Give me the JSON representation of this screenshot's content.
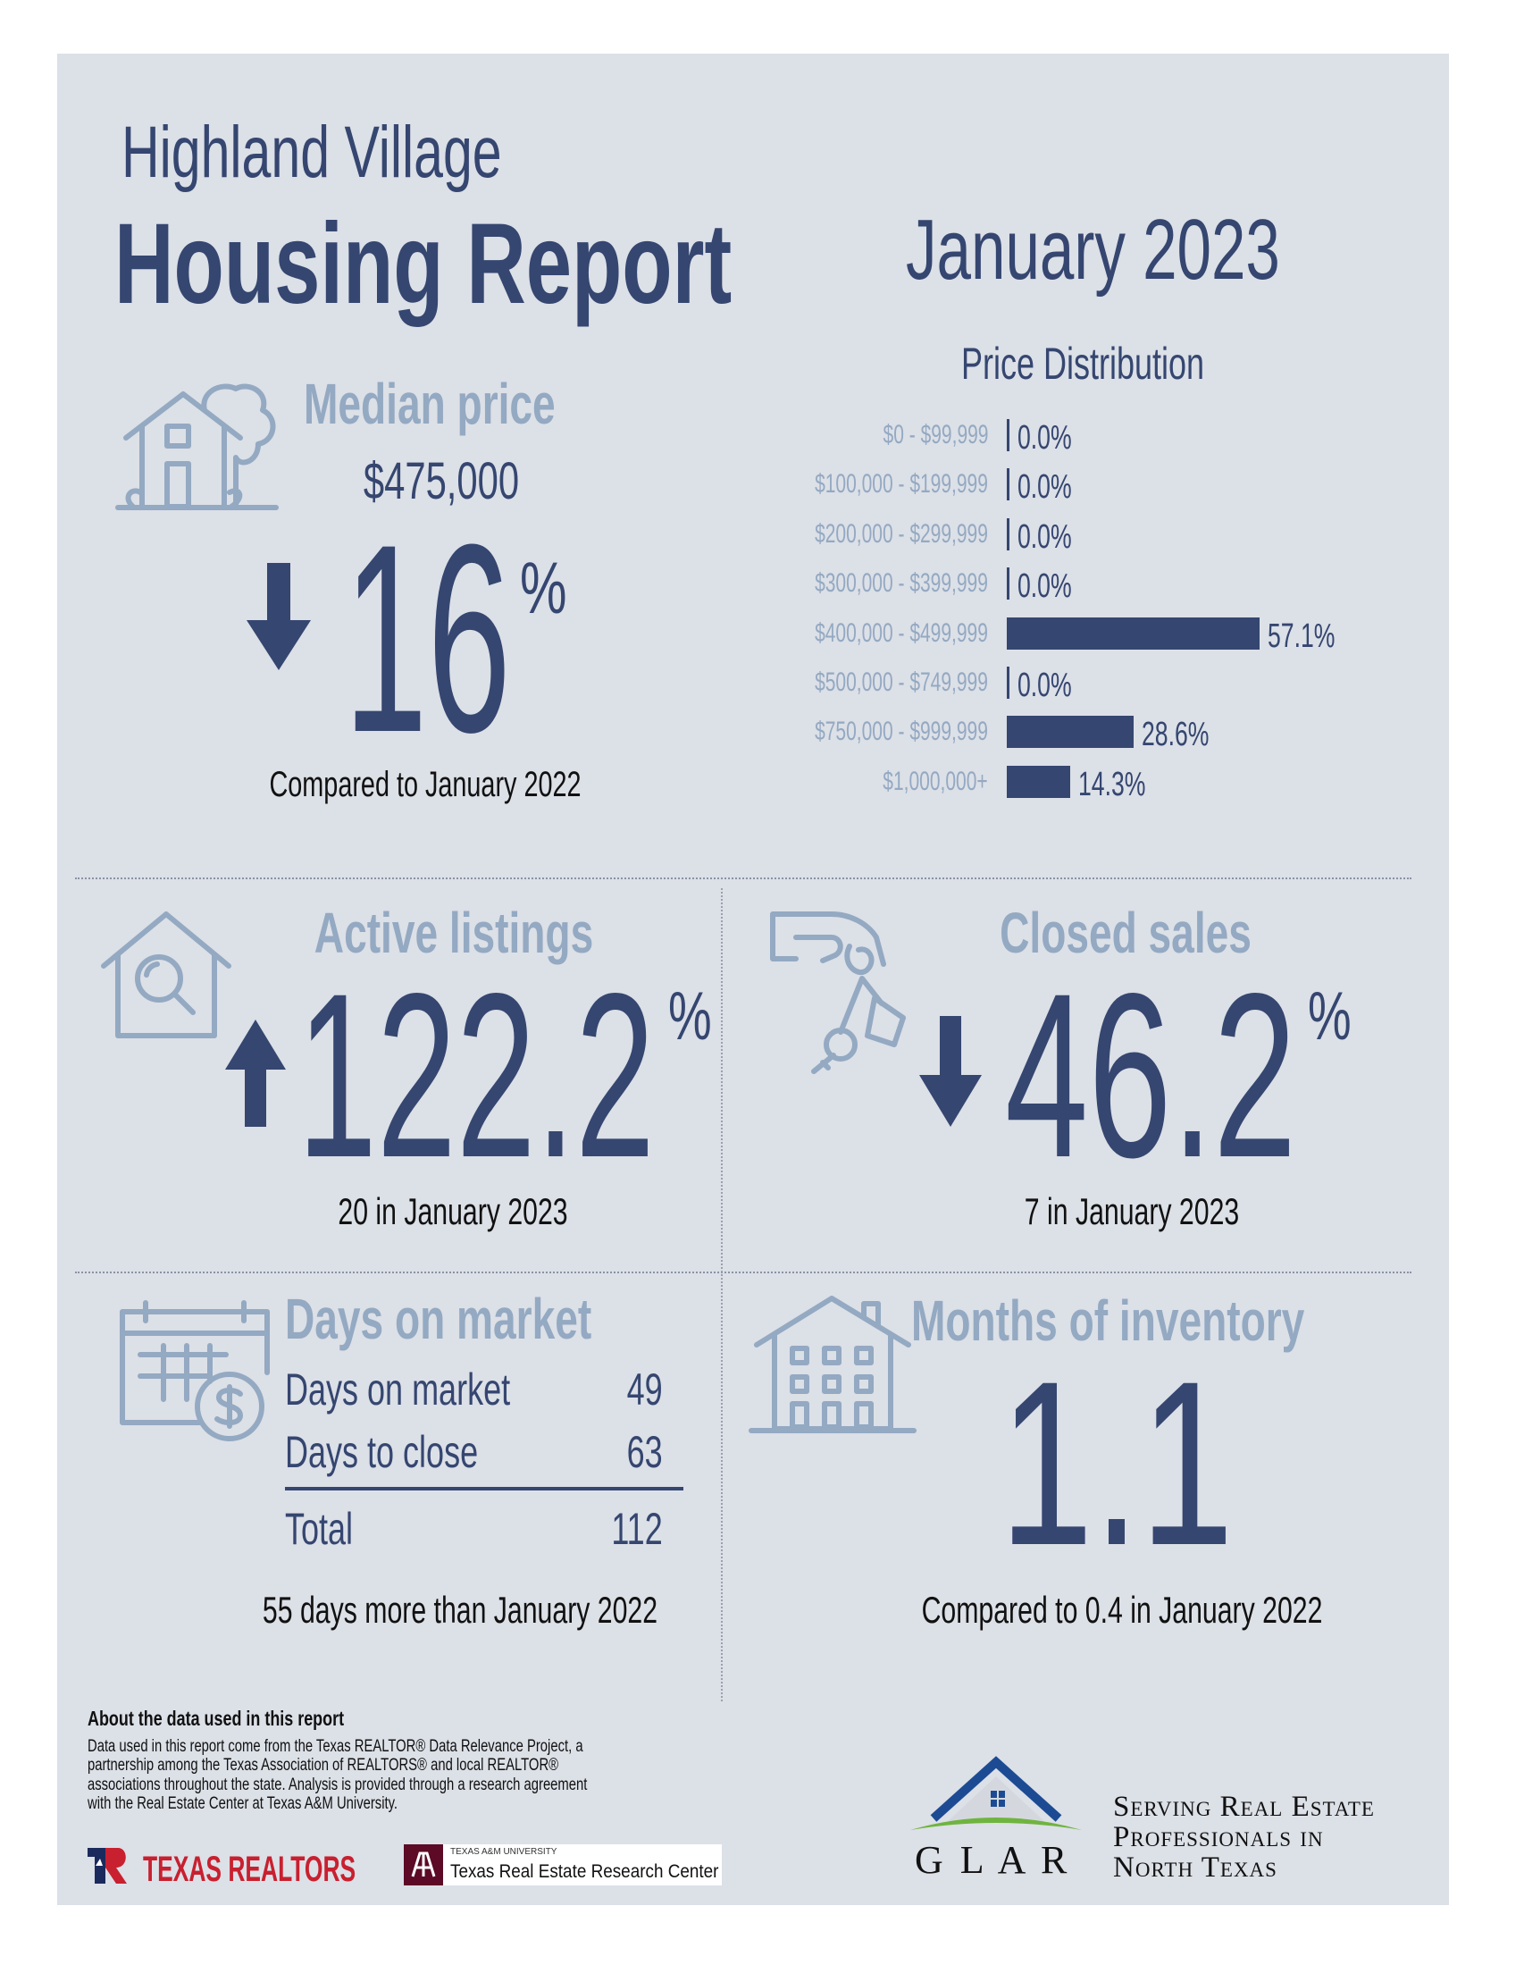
{
  "header": {
    "city": "Highland Village",
    "title": "Housing Report",
    "period": "January 2023"
  },
  "median_price": {
    "title": "Median price",
    "value": "$475,000",
    "change": "16",
    "percent_sign": "%",
    "direction": "down",
    "comparison": "Compared to January 2022"
  },
  "chart_data": {
    "type": "bar",
    "orientation": "horizontal",
    "title": "Price Distribution",
    "categories": [
      "$0 - $99,999",
      "$100,000 - $199,999",
      "$200,000 - $299,999",
      "$300,000 - $399,999",
      "$400,000 - $499,999",
      "$500,000 - $749,999",
      "$750,000 - $999,999",
      "$1,000,000+"
    ],
    "values": [
      0.0,
      0.0,
      0.0,
      0.0,
      57.1,
      0.0,
      28.6,
      14.3
    ],
    "labels": [
      "0.0%",
      "0.0%",
      "0.0%",
      "0.0%",
      "57.1%",
      "0.0%",
      "28.6%",
      "14.3%"
    ],
    "unit": "%"
  },
  "active_listings": {
    "title": "Active listings",
    "change": "122.2",
    "percent_sign": "%",
    "direction": "up",
    "detail": "20 in January 2023"
  },
  "closed_sales": {
    "title": "Closed sales",
    "change": "46.2",
    "percent_sign": "%",
    "direction": "down",
    "detail": "7 in January 2023"
  },
  "days_on_market": {
    "title": "Days on market",
    "rows": [
      {
        "label": "Days on market",
        "value": "49"
      },
      {
        "label": "Days to close",
        "value": "63"
      }
    ],
    "total_label": "Total",
    "total_value": "112",
    "comparison": "55 days more than January 2022"
  },
  "months_inventory": {
    "title": "Months of inventory",
    "value": "1.1",
    "comparison": "Compared to 0.4 in January 2022"
  },
  "footer": {
    "about_title": "About the data used in this report",
    "about_lines": [
      "Data used in this report come from the Texas REALTOR® Data Relevance Project, a",
      "partnership among the Texas Association of REALTORS® and local REALTOR®",
      "associations throughout the state. Analysis is provided through a research agreement",
      "with the Real Estate Center at Texas A&M University."
    ],
    "texas_realtors_logo": "TEXAS REALTORS",
    "tamu_small": "TEXAS A&M UNIVERSITY",
    "tamu_name": "Texas Real Estate Research Center",
    "glar_logo": "G L A R",
    "glar_tagline": [
      "Serving Real Estate",
      "Professionals in",
      "North Texas"
    ]
  },
  "colors": {
    "navy": "#354670",
    "light": "#94a9c2",
    "panel": "#dce0e7"
  }
}
